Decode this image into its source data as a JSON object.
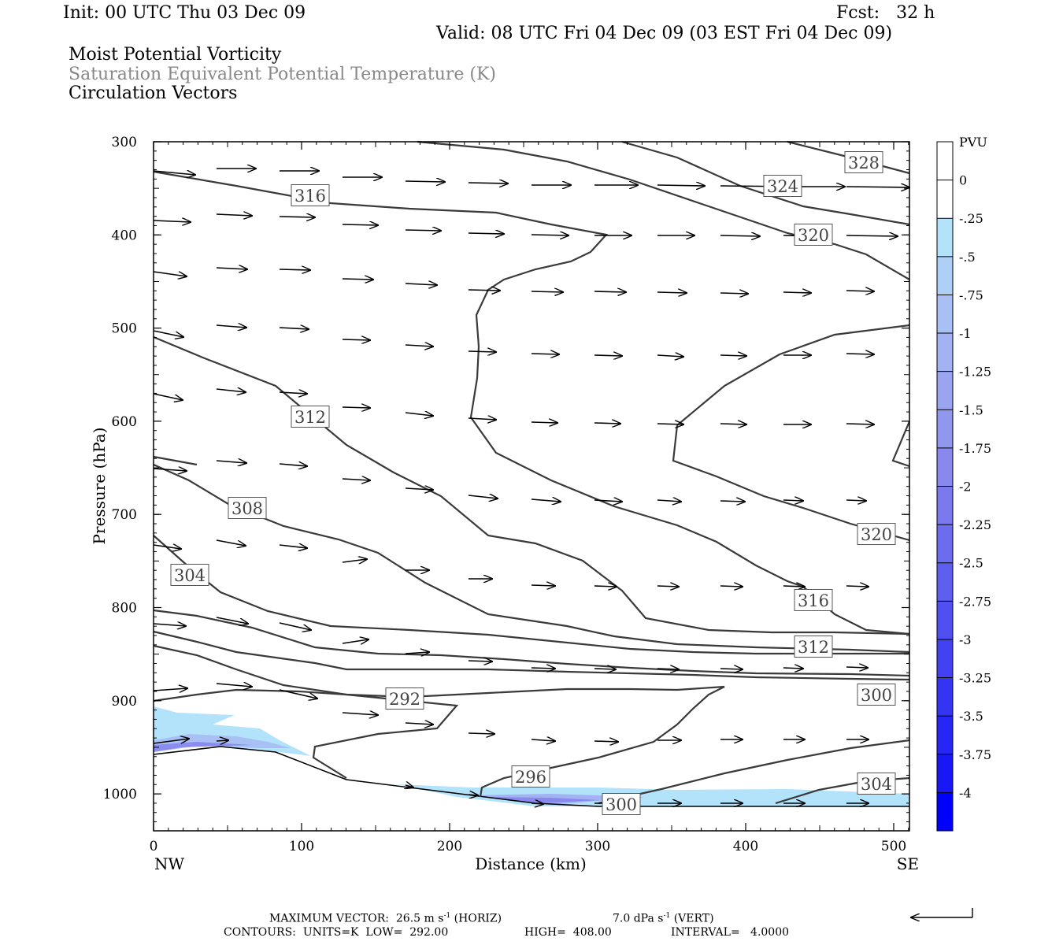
{
  "header": {
    "init": "Init: 00 UTC Thu 03 Dec 09",
    "fcst": "Fcst:   32 h",
    "valid": "Valid: 08 UTC Fri 04 Dec 09 (03 EST Fri 04 Dec 09)",
    "field_1": "Moist Potential Vorticity",
    "field_2": "Saturation Equivalent Potential Temperature (K)",
    "field_3": "Circulation Vectors"
  },
  "colors": {
    "contour": "#3a3a3a",
    "field_2_text": "#888888",
    "frame": "#000000"
  },
  "chart_data": {
    "type": "contour",
    "xlabel": "Distance (km)",
    "ylabel": "Pressure (hPa)",
    "xlim": [
      0,
      510
    ],
    "ylim": [
      1040,
      300
    ],
    "x_ticks": [
      "0",
      "100",
      "200",
      "300",
      "400",
      "500"
    ],
    "y_ticks": [
      "300",
      "400",
      "500",
      "600",
      "700",
      "800",
      "900",
      "1000"
    ],
    "x_end_labels": {
      "left": "NW",
      "right": "SE"
    },
    "contour_units": "K",
    "contour_levels": [
      "292",
      "296",
      "300",
      "300",
      "304",
      "304",
      "308",
      "312",
      "312",
      "316",
      "316",
      "320",
      "320",
      "324",
      "328"
    ],
    "colorbar": {
      "unit": "PVU",
      "labels": [
        "0",
        "-.25",
        "-.5",
        "-.75",
        "-1",
        "-1.25",
        "-1.5",
        "-1.75",
        "-2",
        "-2.25",
        "-2.5",
        "-2.75",
        "-3",
        "-3.25",
        "-3.5",
        "-3.75",
        "-4"
      ],
      "colors": [
        "#ffffff",
        "#ffffff",
        "#b3e3fb",
        "#aed0f7",
        "#a8c0f4",
        "#a3b2f2",
        "#9aa4f0",
        "#9196ef",
        "#8888ee",
        "#7a7aee",
        "#6c6cee",
        "#5e5eef",
        "#5050f0",
        "#4242f2",
        "#3434f3",
        "#2626f5",
        "#1818f7",
        "#0000ff"
      ]
    },
    "vectors": {
      "max_label": "MAXIMUM VECTOR:",
      "max_horiz_value": "26.5",
      "max_horiz_unit": "m s",
      "horiz_tag": "(HORIZ)",
      "max_vert_value": "7.0",
      "max_vert_unit": "dPa s",
      "vert_tag": "(VERT)",
      "exponent": "-1"
    },
    "contour_info": {
      "label": "CONTOURS:",
      "units": "UNITS=K",
      "low_label": "LOW=",
      "low": "292.00",
      "high_label": "HIGH=",
      "high": "408.00",
      "interval_label": "INTERVAL=",
      "interval": "4.0000"
    }
  }
}
